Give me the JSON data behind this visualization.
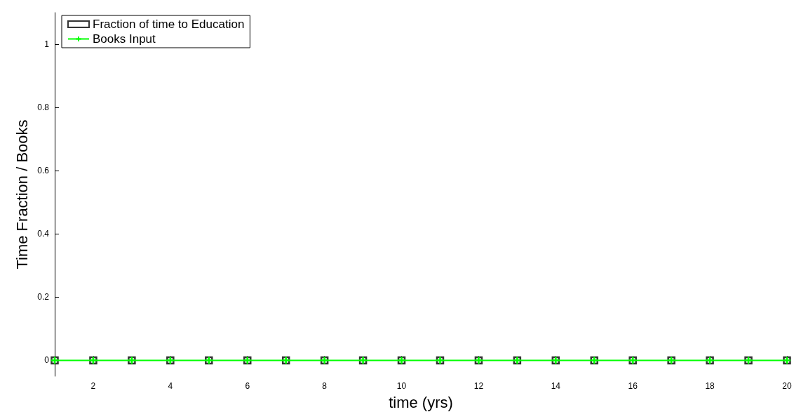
{
  "chart_data": {
    "type": "line",
    "xlabel": "time (yrs)",
    "ylabel": "Time Fraction / Books",
    "x": [
      1,
      2,
      3,
      4,
      5,
      6,
      7,
      8,
      9,
      10,
      11,
      12,
      13,
      14,
      15,
      16,
      17,
      18,
      19,
      20
    ],
    "series": [
      {
        "name": "Fraction of time to Education",
        "type": "scatter",
        "marker": "square",
        "color": "#000000",
        "values": [
          0,
          0,
          0,
          0,
          0,
          0,
          0,
          0,
          0,
          0,
          0,
          0,
          0,
          0,
          0,
          0,
          0,
          0,
          0,
          0
        ]
      },
      {
        "name": "Books Input",
        "marker": "cross",
        "line_style": "solid",
        "color": "#00ff00",
        "values": [
          0,
          0,
          0,
          0,
          0,
          0,
          0,
          0,
          0,
          0,
          0,
          0,
          0,
          0,
          0,
          0,
          0,
          0,
          0,
          0
        ]
      }
    ],
    "xlim": [
      1,
      20
    ],
    "xticks": [
      2,
      4,
      6,
      8,
      10,
      12,
      14,
      16,
      18,
      20
    ],
    "ylim": [
      -0.05,
      1.1
    ],
    "yticks": [
      0,
      0.2,
      0.4,
      0.6,
      0.8,
      1
    ],
    "grid": false,
    "legend": "top left"
  }
}
